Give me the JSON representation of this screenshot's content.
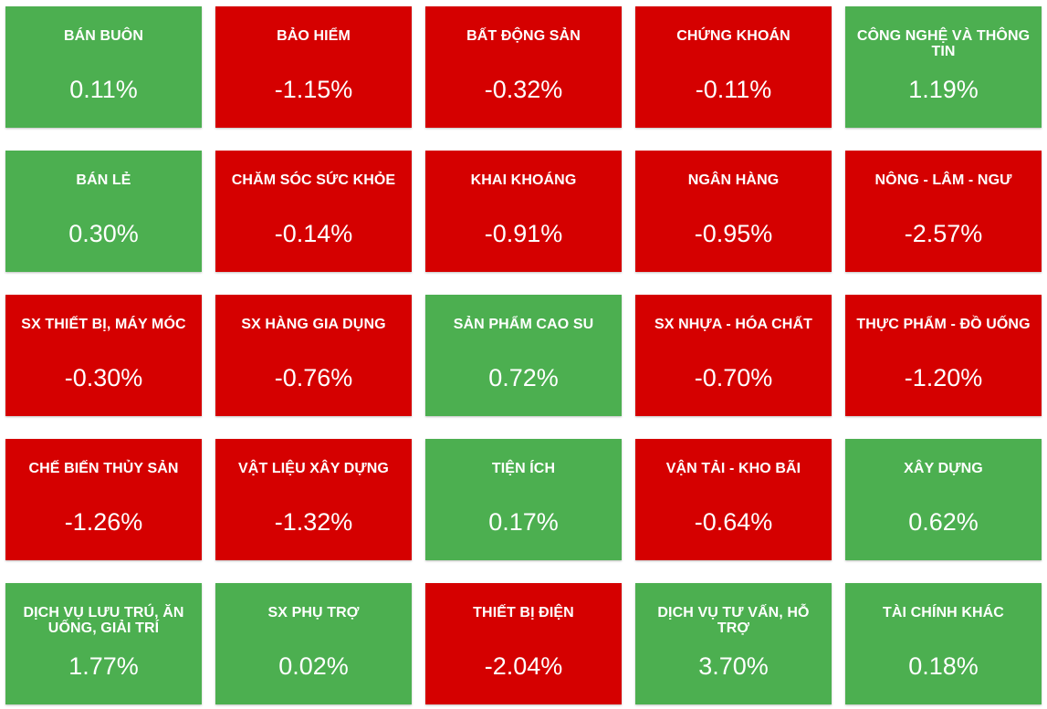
{
  "colors": {
    "up": "#4caf50",
    "down": "#d50000",
    "text": "#ffffff"
  },
  "sectors": [
    {
      "name": "BÁN BUÔN",
      "change": "0.11%",
      "trend": "up"
    },
    {
      "name": "BẢO HIỂM",
      "change": "-1.15%",
      "trend": "down"
    },
    {
      "name": "BẤT ĐỘNG SẢN",
      "change": "-0.32%",
      "trend": "down"
    },
    {
      "name": "CHỨNG KHOÁN",
      "change": "-0.11%",
      "trend": "down"
    },
    {
      "name": "CÔNG NGHỆ VÀ THÔNG TIN",
      "change": "1.19%",
      "trend": "up"
    },
    {
      "name": "BÁN LẺ",
      "change": "0.30%",
      "trend": "up"
    },
    {
      "name": "CHĂM SÓC SỨC KHỎE",
      "change": "-0.14%",
      "trend": "down"
    },
    {
      "name": "KHAI KHOÁNG",
      "change": "-0.91%",
      "trend": "down"
    },
    {
      "name": "NGÂN HÀNG",
      "change": "-0.95%",
      "trend": "down"
    },
    {
      "name": "NÔNG - LÂM - NGƯ",
      "change": "-2.57%",
      "trend": "down"
    },
    {
      "name": "SX THIẾT BỊ, MÁY MÓC",
      "change": "-0.30%",
      "trend": "down"
    },
    {
      "name": "SX HÀNG GIA DỤNG",
      "change": "-0.76%",
      "trend": "down"
    },
    {
      "name": "SẢN PHẨM CAO SU",
      "change": "0.72%",
      "trend": "up"
    },
    {
      "name": "SX NHỰA - HÓA CHẤT",
      "change": "-0.70%",
      "trend": "down"
    },
    {
      "name": "THỰC PHẨM - ĐỒ UỐNG",
      "change": "-1.20%",
      "trend": "down"
    },
    {
      "name": "CHẾ BIẾN THỦY SẢN",
      "change": "-1.26%",
      "trend": "down"
    },
    {
      "name": "VẬT LIỆU XÂY DỰNG",
      "change": "-1.32%",
      "trend": "down"
    },
    {
      "name": "TIỆN ÍCH",
      "change": "0.17%",
      "trend": "up"
    },
    {
      "name": "VẬN TẢI - KHO BÃI",
      "change": "-0.64%",
      "trend": "down"
    },
    {
      "name": "XÂY DỰNG",
      "change": "0.62%",
      "trend": "up"
    },
    {
      "name": "DỊCH VỤ LƯU TRÚ, ĂN UỐNG, GIẢI TRÍ",
      "change": "1.77%",
      "trend": "up"
    },
    {
      "name": "SX PHỤ TRỢ",
      "change": "0.02%",
      "trend": "up"
    },
    {
      "name": "THIẾT BỊ ĐIỆN",
      "change": "-2.04%",
      "trend": "down"
    },
    {
      "name": "DỊCH VỤ TƯ VẤN, HỖ TRỢ",
      "change": "3.70%",
      "trend": "up"
    },
    {
      "name": "TÀI CHÍNH KHÁC",
      "change": "0.18%",
      "trend": "up"
    }
  ]
}
